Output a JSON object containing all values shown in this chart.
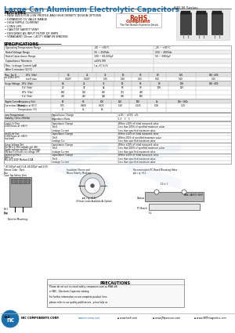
{
  "title": "Large Can Aluminum Electrolytic Capacitors",
  "series": "NRLM Series",
  "title_color": "#1a6faf",
  "features": [
    "NEW SIZES FOR LOW PROFILE AND HIGH DENSITY DESIGN OPTIONS",
    "EXPANDED CV VALUE RANGE",
    "HIGH RIPPLE CURRENT",
    "LONG LIFE",
    "CAN-TOP SAFETY VENT",
    "DESIGNED AS INPUT FILTER OF SMPS",
    "STANDARD 10mm (.400\") SNAP-IN SPACING"
  ],
  "bg_color": "#ffffff",
  "blue_color": "#1a6faf",
  "red_color": "#cc2200",
  "grey_header": "#e0e0e0",
  "watermark_color": "#c8d8e8"
}
